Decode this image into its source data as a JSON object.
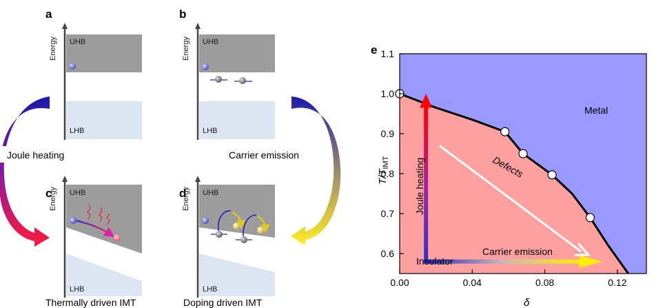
{
  "panels": [
    {
      "letter": "a",
      "energy": "Energy",
      "upper_band": "UHB",
      "lower_band": "LHB",
      "caption": ""
    },
    {
      "letter": "b",
      "energy": "Energy",
      "upper_band": "UHB",
      "lower_band": "LHB",
      "caption": ""
    },
    {
      "letter": "c",
      "energy": "Energy",
      "upper_band": "UHB",
      "lower_band": "LHB",
      "caption": "Thermally driven IMT"
    },
    {
      "letter": "d",
      "energy": "Energy",
      "upper_band": "UHB",
      "lower_band": "LHB",
      "caption": "Doping driven IMT"
    }
  ],
  "arrows": {
    "left": "Joule heating",
    "right": "Carrier emission"
  },
  "colors": {
    "band_upper": "#9c9c9c",
    "band_lower": "#dce6f2",
    "metal": "#9999ff",
    "insulator": "#ffa0a0",
    "boundary": "#000000"
  },
  "chart_data": {
    "type": "line",
    "panel_letter": "e",
    "xlabel": "δ",
    "ylabel_main": "T/T",
    "ylabel_sub": "IMT",
    "xlim": [
      0.0,
      0.136
    ],
    "ylim": [
      0.55,
      1.1
    ],
    "x_ticks": [
      "0.00",
      "0.04",
      "0.08",
      "0.12"
    ],
    "y_ticks": [
      "0.6",
      "0.7",
      "0.8",
      "0.9",
      "1.0",
      "1.1"
    ],
    "boundary_curve": {
      "x": [
        0.0,
        0.02,
        0.04,
        0.058,
        0.068,
        0.084,
        0.095,
        0.105,
        0.115,
        0.126
      ],
      "y": [
        1.0,
        0.965,
        0.935,
        0.905,
        0.85,
        0.797,
        0.75,
        0.69,
        0.62,
        0.55
      ]
    },
    "points": {
      "x": [
        0.0,
        0.058,
        0.068,
        0.084,
        0.105
      ],
      "y": [
        1.0,
        0.905,
        0.85,
        0.797,
        0.69
      ]
    },
    "region_labels": {
      "metal": "Metal",
      "insulator": "Insulator"
    },
    "annotations": {
      "vertical_arrow": "Joule heating",
      "horizontal_arrow": "Carrier emission",
      "diagonal_arrow": "Defects"
    }
  }
}
